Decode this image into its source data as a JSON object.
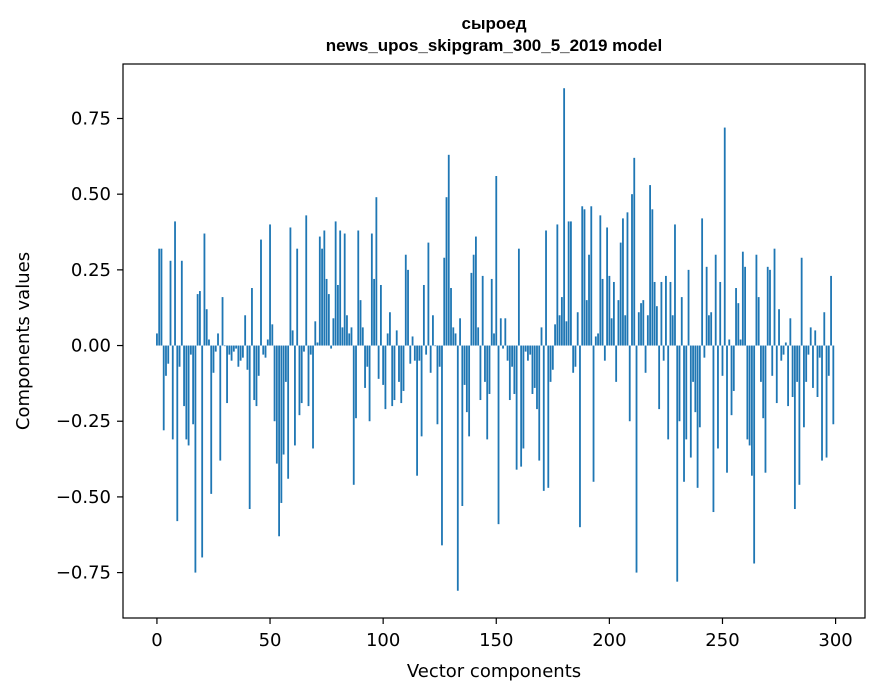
{
  "chart_data": {
    "type": "bar",
    "title": "сыроед",
    "subtitle": "news_upos_skipgram_300_5_2019 model",
    "xlabel": "Vector components",
    "ylabel": "Components values",
    "xlim": [
      -15,
      313
    ],
    "ylim": [
      -0.9,
      0.93
    ],
    "xticks": [
      0,
      50,
      100,
      150,
      200,
      250,
      300
    ],
    "xtick_labels": [
      "0",
      "50",
      "100",
      "150",
      "200",
      "250",
      "300"
    ],
    "yticks": [
      -0.75,
      -0.5,
      -0.25,
      0.0,
      0.25,
      0.5,
      0.75
    ],
    "ytick_labels": [
      "−0.75",
      "−0.50",
      "−0.25",
      "0.00",
      "0.25",
      "0.50",
      "0.75"
    ],
    "bar_color": "#1f77b4",
    "values": [
      0.04,
      0.32,
      0.32,
      -0.28,
      -0.1,
      -0.06,
      0.28,
      -0.31,
      0.41,
      -0.58,
      -0.07,
      0.28,
      -0.2,
      -0.31,
      -0.33,
      -0.03,
      -0.26,
      -0.75,
      0.17,
      0.18,
      -0.7,
      0.37,
      0.12,
      0.02,
      -0.49,
      -0.09,
      -0.02,
      0.04,
      -0.38,
      0.16,
      0.0,
      -0.19,
      -0.03,
      -0.05,
      -0.02,
      -0.01,
      -0.07,
      -0.05,
      -0.04,
      0.1,
      -0.08,
      -0.54,
      0.19,
      -0.18,
      -0.2,
      -0.1,
      0.35,
      -0.03,
      -0.04,
      0.02,
      0.4,
      0.07,
      -0.25,
      -0.39,
      -0.63,
      -0.52,
      -0.36,
      -0.12,
      -0.44,
      0.39,
      0.05,
      -0.33,
      0.32,
      -0.23,
      -0.19,
      -0.02,
      0.43,
      -0.2,
      -0.03,
      -0.34,
      0.08,
      0.01,
      0.36,
      0.32,
      0.38,
      0.22,
      0.17,
      -0.01,
      0.09,
      0.41,
      0.2,
      0.38,
      0.06,
      0.37,
      0.1,
      0.04,
      0.06,
      -0.46,
      -0.24,
      0.38,
      0.15,
      0.06,
      -0.14,
      -0.07,
      -0.25,
      0.37,
      0.22,
      0.49,
      -0.11,
      0.2,
      -0.13,
      -0.21,
      0.04,
      0.11,
      -0.2,
      -0.18,
      0.05,
      -0.12,
      -0.19,
      -0.15,
      0.3,
      0.25,
      -0.06,
      0.03,
      -0.05,
      -0.43,
      -0.05,
      -0.3,
      0.2,
      -0.03,
      0.34,
      -0.09,
      0.1,
      0.0,
      -0.26,
      -0.07,
      -0.66,
      0.29,
      0.49,
      0.63,
      0.19,
      0.06,
      0.04,
      -0.81,
      0.09,
      -0.53,
      -0.13,
      -0.22,
      -0.3,
      0.24,
      0.3,
      0.36,
      0.06,
      -0.18,
      0.23,
      -0.12,
      -0.31,
      -0.16,
      0.22,
      0.04,
      0.56,
      -0.59,
      0.09,
      -0.01,
      0.09,
      -0.05,
      -0.18,
      -0.07,
      -0.16,
      -0.41,
      0.32,
      -0.4,
      -0.34,
      -0.02,
      -0.05,
      -0.03,
      -0.16,
      -0.14,
      -0.21,
      -0.38,
      0.06,
      -0.48,
      0.38,
      -0.47,
      -0.12,
      -0.08,
      0.07,
      0.4,
      0.1,
      0.16,
      0.85,
      0.08,
      0.41,
      0.41,
      -0.09,
      -0.07,
      0.11,
      -0.6,
      0.46,
      0.45,
      0.15,
      0.3,
      0.46,
      -0.45,
      0.03,
      0.04,
      0.43,
      0.22,
      -0.05,
      0.39,
      0.23,
      0.09,
      0.21,
      -0.12,
      0.15,
      0.34,
      0.42,
      0.1,
      0.44,
      -0.25,
      0.5,
      0.62,
      -0.75,
      0.11,
      0.14,
      0.15,
      -0.09,
      0.1,
      0.53,
      0.45,
      0.21,
      0.13,
      -0.21,
      0.21,
      -0.05,
      0.23,
      -0.31,
      0.21,
      0.1,
      0.4,
      -0.78,
      -0.25,
      0.16,
      -0.45,
      -0.31,
      0.25,
      -0.37,
      -0.12,
      -0.22,
      -0.47,
      -0.27,
      0.42,
      -0.04,
      0.26,
      0.1,
      0.11,
      -0.55,
      0.3,
      -0.34,
      0.21,
      -0.1,
      0.72,
      -0.42,
      0.02,
      -0.23,
      -0.15,
      0.19,
      0.14,
      0.02,
      0.31,
      0.26,
      -0.31,
      -0.33,
      -0.43,
      -0.72,
      0.3,
      0.16,
      -0.12,
      -0.24,
      -0.42,
      0.26,
      0.25,
      -0.1,
      0.32,
      -0.19,
      0.12,
      -0.05,
      -0.03,
      0.01,
      -0.2,
      0.09,
      -0.17,
      -0.54,
      -0.12,
      -0.46,
      0.29,
      -0.27,
      -0.12,
      -0.03,
      0.06,
      -0.14,
      0.05,
      -0.17,
      -0.04,
      -0.38,
      0.11,
      -0.37,
      -0.1,
      0.23,
      -0.26
    ]
  }
}
